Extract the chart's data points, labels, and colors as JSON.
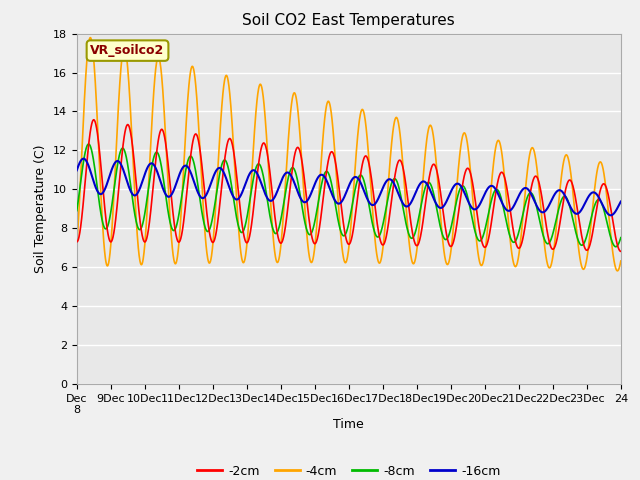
{
  "title": "Soil CO2 East Temperatures",
  "xlabel": "Time",
  "ylabel": "Soil Temperature (C)",
  "ylim": [
    0,
    18
  ],
  "xlim": [
    0,
    16
  ],
  "annotation": "VR_soilco2",
  "legend_labels": [
    "-2cm",
    "-4cm",
    "-8cm",
    "-16cm"
  ],
  "line_colors": [
    "#ff0000",
    "#ffa500",
    "#00bb00",
    "#0000cc"
  ],
  "background_color": "#f0f0f0",
  "plot_bg_color": "#e8e8e8",
  "x_ticks": [
    0,
    1,
    2,
    3,
    4,
    5,
    6,
    7,
    8,
    9,
    10,
    11,
    12,
    13,
    14,
    15,
    16
  ],
  "x_tick_labels": [
    "Dec\n8",
    "9Dec",
    "10Dec",
    "11Dec",
    "12Dec",
    "13Dec",
    "14Dec",
    "15Dec",
    "16Dec",
    "17Dec",
    "18Dec",
    "19Dec",
    "20Dec",
    "21Dec",
    "22Dec",
    "23Dec",
    "24"
  ],
  "yticks": [
    0,
    2,
    4,
    6,
    8,
    10,
    12,
    14,
    16,
    18
  ],
  "title_fontsize": 11,
  "label_fontsize": 9,
  "tick_fontsize": 8
}
